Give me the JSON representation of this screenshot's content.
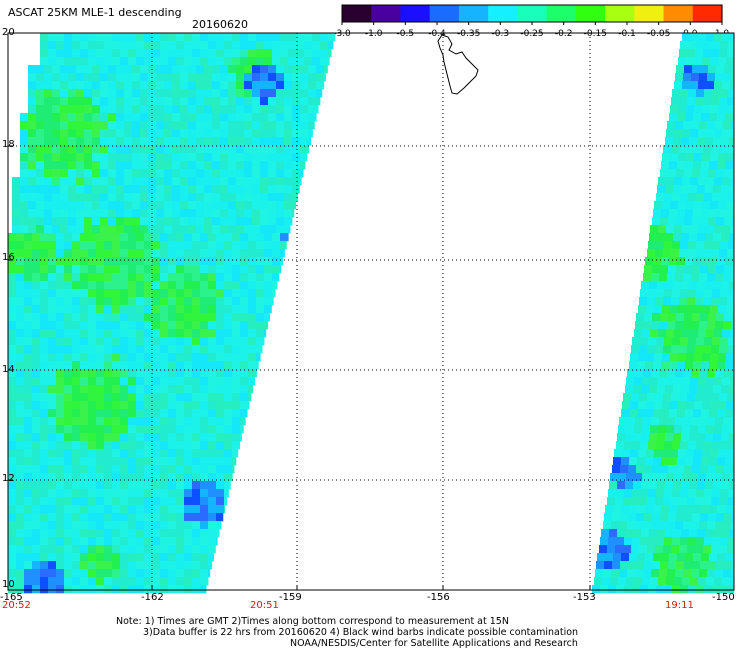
{
  "header": {
    "product": "ASCAT 25KM MLE-1 descending",
    "date": "20160620"
  },
  "colorbar": {
    "ticks": [
      "-3.0",
      "-1.0",
      "-0.5",
      "-0.4",
      "-0.35",
      "-0.3",
      "-0.25",
      "-0.2",
      "-0.15",
      "-0.1",
      "-0.05",
      "0.0",
      "1.0"
    ],
    "colors": [
      "#2a0030",
      "#4a00a0",
      "#1a10ff",
      "#1a6cff",
      "#16b4ff",
      "#14f0ff",
      "#18ffbc",
      "#1cff6a",
      "#30ff10",
      "#a8ff10",
      "#f0f010",
      "#ff8c00",
      "#ff2a00"
    ]
  },
  "map": {
    "lat_labels": [
      "20",
      "18",
      "16",
      "14",
      "12",
      "10"
    ],
    "lon_labels": [
      "-165",
      "-162",
      "-159",
      "-156",
      "-153",
      "-150"
    ],
    "time_labels": [
      "20:52",
      "20:51",
      "19:11"
    ],
    "colors": {
      "swath_base": "#1ff4e2",
      "green": "#22f050",
      "blue": "#2a6cff",
      "grid": "#000000",
      "coast": "#000000",
      "time_text": "#cc2200"
    }
  },
  "notes": {
    "line1": "Note: 1) Times are GMT 2)Times along bottom correspond to measurement at 15N",
    "line2": "3)Data buffer is 22 hrs from 20160620 4) Black wind barbs indicate possible contamination",
    "line3": "NOAA/NESDIS/Center for Satellite Applications and Research"
  }
}
